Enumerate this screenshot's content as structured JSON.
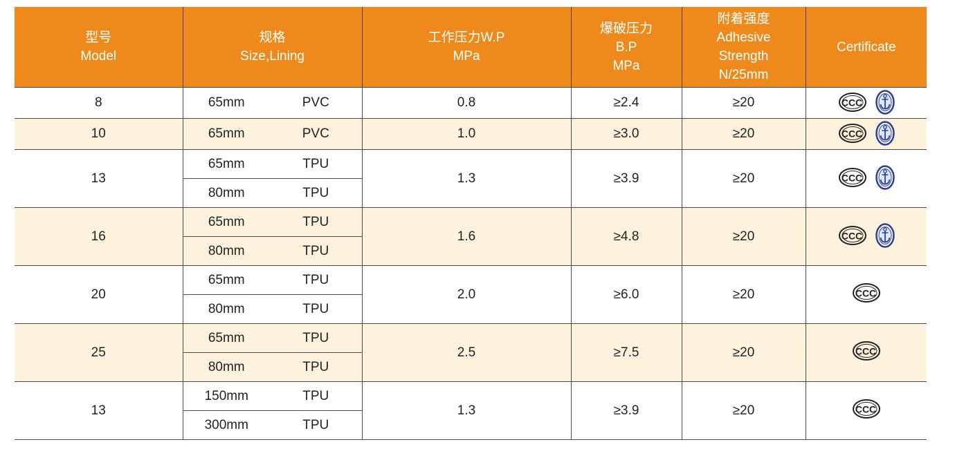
{
  "header": {
    "model": [
      "型号",
      "Model"
    ],
    "size": [
      "规格",
      "Size,Lining"
    ],
    "wp": [
      "工作压力W.P",
      "MPa"
    ],
    "bp": [
      "爆破压力",
      "B.P",
      "MPa"
    ],
    "adhesive": [
      "附着强度",
      "Adhesive",
      "Strength",
      "N/25mm"
    ],
    "certificate": "Certificate"
  },
  "groups": [
    {
      "model": "8",
      "rows": [
        {
          "size": "65mm",
          "lining": "PVC"
        }
      ],
      "wp": "0.8",
      "bp": "≥2.4",
      "adhesive": "≥20",
      "certs": [
        "ccc-icon",
        "anchor-icon"
      ]
    },
    {
      "model": "10",
      "rows": [
        {
          "size": "65mm",
          "lining": "PVC"
        }
      ],
      "wp": "1.0",
      "bp": "≥3.0",
      "adhesive": "≥20",
      "certs": [
        "ccc-icon",
        "anchor-icon"
      ]
    },
    {
      "model": "13",
      "rows": [
        {
          "size": "65mm",
          "lining": "TPU"
        },
        {
          "size": "80mm",
          "lining": "TPU"
        }
      ],
      "wp": "1.3",
      "bp": "≥3.9",
      "adhesive": "≥20",
      "certs": [
        "ccc-icon",
        "anchor-icon"
      ]
    },
    {
      "model": "16",
      "rows": [
        {
          "size": "65mm",
          "lining": "TPU"
        },
        {
          "size": "80mm",
          "lining": "TPU"
        }
      ],
      "wp": "1.6",
      "bp": "≥4.8",
      "adhesive": "≥20",
      "certs": [
        "ccc-icon",
        "anchor-icon"
      ]
    },
    {
      "model": "20",
      "rows": [
        {
          "size": "65mm",
          "lining": "TPU"
        },
        {
          "size": "80mm",
          "lining": "TPU"
        }
      ],
      "wp": "2.0",
      "bp": "≥6.0",
      "adhesive": "≥20",
      "certs": [
        "ccc-icon"
      ]
    },
    {
      "model": "25",
      "rows": [
        {
          "size": "65mm",
          "lining": "TPU"
        },
        {
          "size": "80mm",
          "lining": "TPU"
        }
      ],
      "wp": "2.5",
      "bp": "≥7.5",
      "adhesive": "≥20",
      "certs": [
        "ccc-icon"
      ]
    },
    {
      "model": "13",
      "rows": [
        {
          "size": "150mm",
          "lining": "TPU"
        },
        {
          "size": "300mm",
          "lining": "TPU"
        }
      ],
      "wp": "1.3",
      "bp": "≥3.9",
      "adhesive": "≥20",
      "certs": [
        "ccc-icon"
      ]
    }
  ],
  "colors": {
    "header_bg": "#ee8a1c",
    "header_text": "#ffffff",
    "stripe": "#fdf3dc",
    "rule": "#4a4a4a",
    "anchor_blue": "#2a3f9a"
  }
}
